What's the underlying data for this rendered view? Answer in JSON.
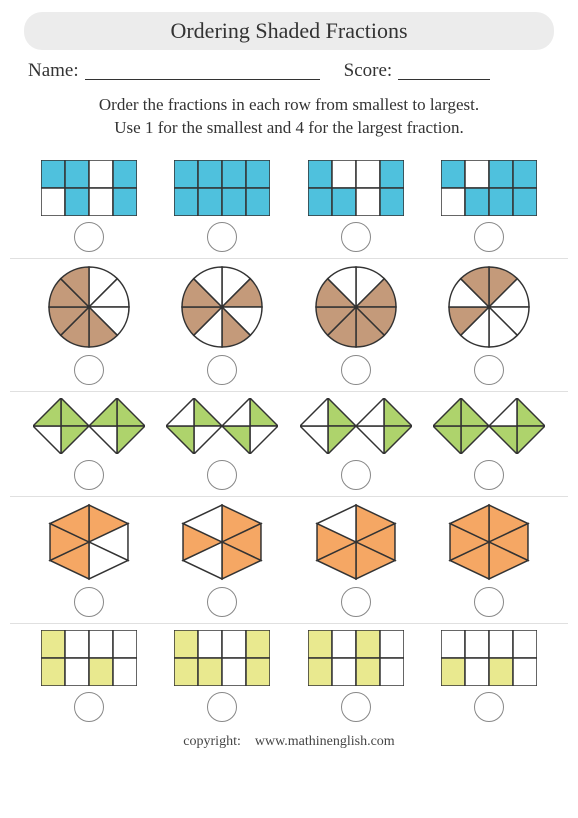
{
  "title": "Ordering Shaded Fractions",
  "name_label": "Name:",
  "score_label": "Score:",
  "instructions_l1": "Order the fractions in each row from smallest to largest.",
  "instructions_l2": "Use 1 for the smallest and 4 for the largest fraction.",
  "footer_copyright": "copyright:",
  "footer_site": "www.mathinenglish.com",
  "colors": {
    "stroke": "#333333",
    "row1_fill": "#4fc1dd",
    "row2_fill": "#c49a7a",
    "row3_fill": "#aed36c",
    "row4_fill": "#f5a764",
    "row5_fill": "#e9e98f",
    "nofill": "#ffffff",
    "answer_circle": "#888888"
  },
  "layout": {
    "name_line_width": 235,
    "score_line_width": 92,
    "shape_size": 90,
    "answer_circle_diameter": 30
  },
  "rows": [
    {
      "type": "grid-2x4",
      "color_key": "row1_fill",
      "shapes": [
        {
          "shaded": [
            0,
            1,
            3,
            5,
            7
          ]
        },
        {
          "shaded": [
            0,
            1,
            2,
            3,
            4,
            5,
            6,
            7
          ]
        },
        {
          "shaded": [
            0,
            3,
            4,
            5,
            7
          ]
        },
        {
          "shaded": [
            0,
            2,
            3,
            5,
            6,
            7
          ]
        }
      ]
    },
    {
      "type": "pie-8",
      "color_key": "row2_fill",
      "shapes": [
        {
          "shaded": [
            3,
            4,
            5,
            6,
            7
          ]
        },
        {
          "shaded": [
            1,
            3,
            5,
            6
          ]
        },
        {
          "shaded": [
            1,
            2,
            3,
            4,
            5,
            6
          ]
        },
        {
          "shaded": [
            0,
            5,
            7
          ]
        }
      ]
    },
    {
      "type": "bowtie-8",
      "color_key": "row3_fill",
      "shapes": [
        {
          "shaded": [
            0,
            1,
            3,
            4,
            5,
            7
          ]
        },
        {
          "shaded": [
            0,
            2,
            4,
            6
          ]
        },
        {
          "shaded": [
            0,
            1,
            4,
            5
          ]
        },
        {
          "shaded": [
            0,
            1,
            2,
            3,
            4,
            5,
            6
          ]
        }
      ]
    },
    {
      "type": "hexagon-6",
      "color_key": "row4_fill",
      "shapes": [
        {
          "shaded": [
            0,
            3,
            4,
            5
          ]
        },
        {
          "shaded": [
            0,
            1,
            2,
            4
          ]
        },
        {
          "shaded": [
            0,
            1,
            2,
            3,
            4
          ]
        },
        {
          "shaded": [
            0,
            1,
            2,
            3,
            4,
            5
          ]
        }
      ]
    },
    {
      "type": "grid-2x4",
      "color_key": "row5_fill",
      "shapes": [
        {
          "shaded": [
            0,
            4,
            6
          ]
        },
        {
          "shaded": [
            0,
            3,
            4,
            5,
            7
          ]
        },
        {
          "shaded": [
            0,
            2,
            4,
            6
          ]
        },
        {
          "shaded": [
            4,
            6
          ]
        }
      ]
    }
  ]
}
